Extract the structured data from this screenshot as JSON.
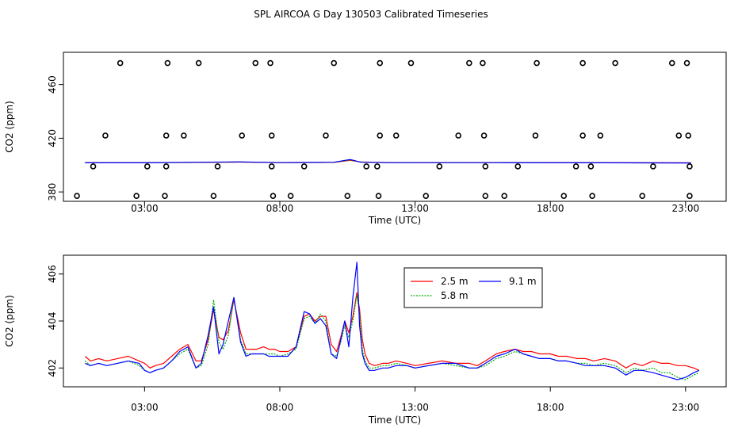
{
  "title": "SPL AIRCOA G  Day 130503  Calibrated Timeseries",
  "chart_data": [
    {
      "type": "scatter+line",
      "xlabel": "Time (UTC)",
      "ylabel": "CO2 (ppm)",
      "xlim": [
        0.0,
        24.5
      ],
      "ylim": [
        373.0,
        484.0
      ],
      "xticks": [
        3,
        8,
        13,
        18,
        23
      ],
      "xtick_labels": [
        "03:00",
        "08:00",
        "13:00",
        "18:00",
        "23:00"
      ],
      "yticks": [
        380,
        420,
        460
      ],
      "ytick_labels": [
        "380",
        "420",
        "460"
      ],
      "calibration_points": [
        {
          "level": 476,
          "x": [
            2.1,
            3.85,
            5.0,
            7.1,
            7.65,
            10.0,
            11.7,
            12.85,
            15.0,
            15.5,
            17.5,
            19.2,
            20.4,
            22.5,
            23.05
          ]
        },
        {
          "level": 422,
          "x": [
            1.55,
            3.8,
            4.45,
            6.6,
            7.7,
            9.7,
            11.7,
            12.3,
            14.6,
            15.55,
            17.45,
            19.2,
            19.85,
            22.75,
            23.1
          ]
        },
        {
          "level": 399,
          "x": [
            1.1,
            3.1,
            3.8,
            5.7,
            7.7,
            8.9,
            11.2,
            11.6,
            13.9,
            15.6,
            16.8,
            18.95,
            19.5,
            21.8,
            23.15
          ]
        },
        {
          "level": 377,
          "x": [
            0.5,
            2.7,
            3.75,
            5.55,
            7.75,
            8.4,
            10.5,
            11.65,
            13.4,
            15.6,
            16.3,
            18.5,
            19.55,
            21.4,
            23.15
          ]
        }
      ],
      "series": [
        {
          "name": "2.5 m",
          "color": "#ff0000",
          "x": [
            0.8,
            3.0,
            5.0,
            6.5,
            8.0,
            10.0,
            10.6,
            11.0,
            12.0,
            16.0,
            20.0,
            23.2
          ],
          "values": [
            401.8,
            401.8,
            402.0,
            402.2,
            401.9,
            402.0,
            403.5,
            402.3,
            401.9,
            401.9,
            401.8,
            401.7
          ]
        },
        {
          "name": "5.8 m",
          "color": "#00aa00",
          "x": [
            0.8,
            3.0,
            5.0,
            6.5,
            8.0,
            10.0,
            10.6,
            11.0,
            12.0,
            16.0,
            20.0,
            23.2
          ],
          "values": [
            401.7,
            401.7,
            402.0,
            402.3,
            401.8,
            402.0,
            403.8,
            402.2,
            401.8,
            401.8,
            401.7,
            401.6
          ]
        },
        {
          "name": "9.1 m",
          "color": "#0000ff",
          "x": [
            0.8,
            3.0,
            5.0,
            6.5,
            8.0,
            10.0,
            10.6,
            11.0,
            12.0,
            16.0,
            20.0,
            23.2
          ],
          "values": [
            401.7,
            401.7,
            402.1,
            402.4,
            401.8,
            402.1,
            404.2,
            402.1,
            401.8,
            401.8,
            401.7,
            401.6
          ]
        }
      ]
    },
    {
      "type": "line",
      "xlabel": "Time (UTC)",
      "ylabel": "CO2 (ppm)",
      "xlim": [
        0.0,
        24.5
      ],
      "ylim": [
        401.2,
        406.8
      ],
      "xticks": [
        3,
        8,
        13,
        18,
        23
      ],
      "xtick_labels": [
        "03:00",
        "08:00",
        "13:00",
        "18:00",
        "23:00"
      ],
      "yticks": [
        402,
        404,
        406
      ],
      "ytick_labels": [
        "402",
        "404",
        "406"
      ],
      "legend": {
        "placement": "top-center"
      },
      "series": [
        {
          "name": "2.5 m",
          "color": "#ff0000",
          "x": [
            0.8,
            1.0,
            1.3,
            1.6,
            2.0,
            2.4,
            2.8,
            3.0,
            3.2,
            3.4,
            3.7,
            4.0,
            4.3,
            4.6,
            4.9,
            5.1,
            5.35,
            5.55,
            5.75,
            5.9,
            6.1,
            6.3,
            6.55,
            6.75,
            6.95,
            7.15,
            7.4,
            7.6,
            7.8,
            8.0,
            8.3,
            8.6,
            8.9,
            9.1,
            9.3,
            9.5,
            9.7,
            9.9,
            10.1,
            10.25,
            10.4,
            10.55,
            10.7,
            10.85,
            10.95,
            11.05,
            11.15,
            11.3,
            11.5,
            11.8,
            12.0,
            12.3,
            12.7,
            13.0,
            13.5,
            14.0,
            14.5,
            15.0,
            15.3,
            15.6,
            16.0,
            16.3,
            16.7,
            17.0,
            17.3,
            17.6,
            18.0,
            18.3,
            18.6,
            19.0,
            19.3,
            19.6,
            20.0,
            20.4,
            20.8,
            21.1,
            21.4,
            21.8,
            22.1,
            22.4,
            22.7,
            23.0,
            23.3,
            23.5
          ],
          "values": [
            402.5,
            402.3,
            402.4,
            402.3,
            402.4,
            402.5,
            402.3,
            402.2,
            402.0,
            402.1,
            402.2,
            402.5,
            402.8,
            403.0,
            402.3,
            402.3,
            403.2,
            404.5,
            403.3,
            403.2,
            403.6,
            404.9,
            403.5,
            402.8,
            402.8,
            402.8,
            402.9,
            402.8,
            402.8,
            402.7,
            402.7,
            402.9,
            404.2,
            404.3,
            404.0,
            404.2,
            404.2,
            403.0,
            402.7,
            403.3,
            404.0,
            403.5,
            404.2,
            405.2,
            404.5,
            403.2,
            402.6,
            402.2,
            402.1,
            402.2,
            402.2,
            402.3,
            402.2,
            402.1,
            402.2,
            402.3,
            402.2,
            402.2,
            402.1,
            402.3,
            402.6,
            402.7,
            402.8,
            402.7,
            402.7,
            402.6,
            402.6,
            402.5,
            402.5,
            402.4,
            402.4,
            402.3,
            402.4,
            402.3,
            402.0,
            402.2,
            402.1,
            402.3,
            402.2,
            402.2,
            402.1,
            402.1,
            402.0,
            401.9
          ]
        },
        {
          "name": "5.8 m",
          "color": "#00aa00",
          "x": [
            0.8,
            1.0,
            1.3,
            1.6,
            2.0,
            2.4,
            2.8,
            3.0,
            3.2,
            3.4,
            3.7,
            4.0,
            4.3,
            4.6,
            4.9,
            5.1,
            5.35,
            5.55,
            5.75,
            5.9,
            6.1,
            6.3,
            6.55,
            6.75,
            6.95,
            7.15,
            7.4,
            7.6,
            7.8,
            8.0,
            8.3,
            8.6,
            8.9,
            9.1,
            9.3,
            9.5,
            9.7,
            9.9,
            10.1,
            10.25,
            10.4,
            10.55,
            10.7,
            10.85,
            10.95,
            11.05,
            11.15,
            11.3,
            11.5,
            11.8,
            12.0,
            12.3,
            12.7,
            13.0,
            13.5,
            14.0,
            14.5,
            15.0,
            15.3,
            15.6,
            16.0,
            16.3,
            16.7,
            17.0,
            17.3,
            17.6,
            18.0,
            18.3,
            18.6,
            19.0,
            19.3,
            19.6,
            20.0,
            20.4,
            20.8,
            21.1,
            21.4,
            21.8,
            22.1,
            22.4,
            22.7,
            23.0,
            23.3,
            23.5
          ],
          "values": [
            402.3,
            402.1,
            402.2,
            402.1,
            402.2,
            402.3,
            402.1,
            401.9,
            401.8,
            401.9,
            402.0,
            402.3,
            402.6,
            402.8,
            402.0,
            402.1,
            403.0,
            404.9,
            403.1,
            402.8,
            403.4,
            405.0,
            403.2,
            402.6,
            402.6,
            402.6,
            402.6,
            402.6,
            402.6,
            402.5,
            402.6,
            402.8,
            404.1,
            404.2,
            403.9,
            404.3,
            404.0,
            402.6,
            402.5,
            403.1,
            403.8,
            403.3,
            404.0,
            405.1,
            404.3,
            402.8,
            402.3,
            402.0,
            402.0,
            402.1,
            402.1,
            402.2,
            402.1,
            402.0,
            402.1,
            402.2,
            402.1,
            402.0,
            402.0,
            402.1,
            402.4,
            402.5,
            402.7,
            402.6,
            402.5,
            402.4,
            402.4,
            402.3,
            402.3,
            402.2,
            402.2,
            402.1,
            402.2,
            402.1,
            401.8,
            402.0,
            401.9,
            402.0,
            401.8,
            401.8,
            401.6,
            401.5,
            401.7,
            401.8
          ]
        },
        {
          "name": "9.1 m",
          "color": "#0000ff",
          "x": [
            0.8,
            1.0,
            1.3,
            1.6,
            2.0,
            2.4,
            2.8,
            3.0,
            3.2,
            3.4,
            3.7,
            4.0,
            4.3,
            4.6,
            4.9,
            5.1,
            5.35,
            5.55,
            5.75,
            5.9,
            6.1,
            6.3,
            6.55,
            6.75,
            6.95,
            7.15,
            7.4,
            7.6,
            7.8,
            8.0,
            8.3,
            8.6,
            8.9,
            9.1,
            9.3,
            9.5,
            9.7,
            9.9,
            10.1,
            10.25,
            10.4,
            10.55,
            10.7,
            10.85,
            10.95,
            11.05,
            11.15,
            11.3,
            11.5,
            11.8,
            12.0,
            12.3,
            12.7,
            13.0,
            13.5,
            14.0,
            14.5,
            15.0,
            15.3,
            15.6,
            16.0,
            16.3,
            16.7,
            17.0,
            17.3,
            17.6,
            18.0,
            18.3,
            18.6,
            19.0,
            19.3,
            19.6,
            20.0,
            20.4,
            20.8,
            21.1,
            21.4,
            21.8,
            22.1,
            22.4,
            22.7,
            23.0,
            23.3,
            23.5
          ],
          "values": [
            402.2,
            402.1,
            402.2,
            402.1,
            402.2,
            402.3,
            402.2,
            401.9,
            401.8,
            401.9,
            402.0,
            402.3,
            402.7,
            402.9,
            402.0,
            402.2,
            403.4,
            404.6,
            402.6,
            403.0,
            404.0,
            405.0,
            403.1,
            402.5,
            402.6,
            402.6,
            402.6,
            402.5,
            402.5,
            402.5,
            402.5,
            402.9,
            404.4,
            404.3,
            403.9,
            404.1,
            403.8,
            402.6,
            402.4,
            403.2,
            404.0,
            402.9,
            405.0,
            406.5,
            403.8,
            402.6,
            402.2,
            401.9,
            401.9,
            402.0,
            402.0,
            402.1,
            402.1,
            402.0,
            402.1,
            402.2,
            402.2,
            402.0,
            402.0,
            402.2,
            402.5,
            402.6,
            402.8,
            402.6,
            402.5,
            402.4,
            402.4,
            402.3,
            402.3,
            402.2,
            402.1,
            402.1,
            402.1,
            402.0,
            401.7,
            401.9,
            401.9,
            401.8,
            401.7,
            401.6,
            401.5,
            401.6,
            401.8,
            401.9
          ]
        }
      ]
    }
  ]
}
